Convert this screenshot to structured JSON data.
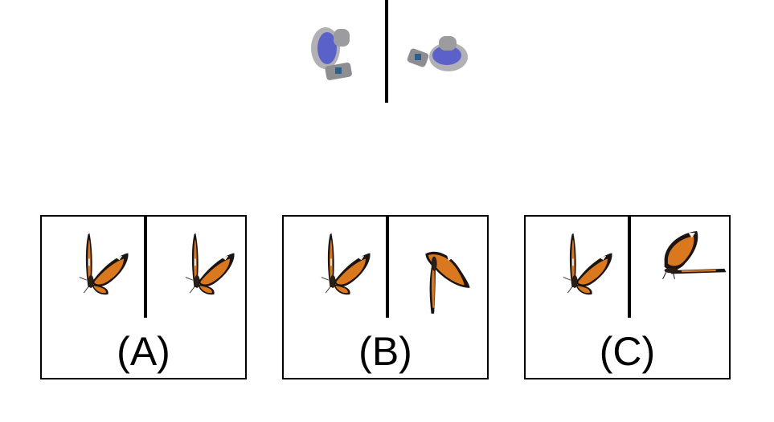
{
  "reference": {
    "left_object_icon": "fan-object-icon",
    "right_object_icon": "fan-object-icon",
    "colors": {
      "body": "#a9a9ad",
      "blade": "#5a61c9",
      "divider": "#000000"
    }
  },
  "options": [
    {
      "label": "(A)",
      "left_icon": "butterfly-side-icon",
      "right_icon": "butterfly-side-icon"
    },
    {
      "label": "(B)",
      "left_icon": "butterfly-side-icon",
      "right_icon": "butterfly-tilted-icon"
    },
    {
      "label": "(C)",
      "left_icon": "butterfly-side-icon",
      "right_icon": "butterfly-flat-icon"
    }
  ],
  "colors": {
    "wing_orange": "#d9781f",
    "wing_dark": "#1c1410",
    "wing_spot": "#f4f1ea"
  }
}
